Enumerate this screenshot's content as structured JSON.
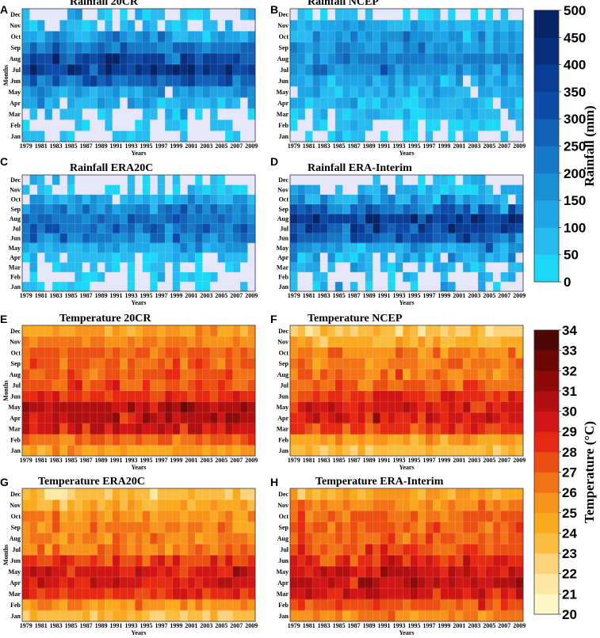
{
  "chart_data": {
    "type": "heatmap",
    "years": [
      1979,
      1980,
      1981,
      1982,
      1983,
      1984,
      1985,
      1986,
      1987,
      1988,
      1989,
      1990,
      1991,
      1992,
      1993,
      1994,
      1995,
      1996,
      1997,
      1998,
      1999,
      2000,
      2001,
      2002,
      2003,
      2004,
      2005,
      2006,
      2007,
      2008,
      2009
    ],
    "months": [
      "Jan",
      "Feb",
      "Mar",
      "Apr",
      "May",
      "Jun",
      "Jul",
      "Aug",
      "Sep",
      "Oct",
      "Nov",
      "Dec"
    ],
    "x_tick_labels": [
      "1979",
      "1981",
      "1983",
      "1985",
      "1987",
      "1989",
      "1991",
      "1993",
      "1995",
      "1997",
      "1999",
      "2001",
      "2003",
      "2005",
      "2007",
      "2009"
    ],
    "xlabel": "Years",
    "ylabel": "Months",
    "colorbars": [
      {
        "id": "rainfall",
        "label": "Rainfall (mm)",
        "ticks": [
          "0",
          "50",
          "100",
          "150",
          "200",
          "250",
          "300",
          "350",
          "400",
          "450",
          "500"
        ],
        "range": [
          0,
          500
        ],
        "low_color": "#e6e6fa",
        "bins": [
          "#1cd8f6",
          "#27bbef",
          "#1ea6e8",
          "#1790d5",
          "#1578c8",
          "#1262b8",
          "#0d4ba8",
          "#0a3d95",
          "#082f7c",
          "#072466"
        ]
      },
      {
        "id": "temperature",
        "label": "Temperature (°C)",
        "ticks": [
          "20",
          "21",
          "22",
          "23",
          "24",
          "25",
          "26",
          "27",
          "28",
          "29",
          "30",
          "31",
          "32",
          "33",
          "34"
        ],
        "range": [
          20,
          34
        ],
        "bins": [
          "#fff8c6",
          "#fde9a3",
          "#fcd37b",
          "#fbbd40",
          "#f9aa1f",
          "#f7931b",
          "#f27316",
          "#ec4f12",
          "#e62912",
          "#d01515",
          "#b10f10",
          "#8e0b0c",
          "#6d0807",
          "#4f0705"
        ]
      }
    ],
    "panels": [
      {
        "letter": "A",
        "title": "Rainfall 20CR",
        "variable": "rainfall",
        "seed": 11,
        "monthly_mean": [
          8,
          10,
          22,
          95,
          130,
          280,
          390,
          340,
          230,
          150,
          60,
          18
        ],
        "noise": 55,
        "show_ylabel": true
      },
      {
        "letter": "B",
        "title": "Rainfall NCEP",
        "variable": "rainfall",
        "seed": 23,
        "monthly_mean": [
          15,
          30,
          70,
          85,
          95,
          115,
          190,
          200,
          160,
          150,
          100,
          20
        ],
        "noise": 35,
        "show_ylabel": false
      },
      {
        "letter": "C",
        "title": "Rainfall ERA20C",
        "variable": "rainfall",
        "seed": 37,
        "monthly_mean": [
          8,
          10,
          22,
          70,
          120,
          210,
          250,
          245,
          180,
          105,
          20,
          10
        ],
        "noise": 45,
        "show_ylabel": false
      },
      {
        "letter": "D",
        "title": "Rainfall ERA-Interim",
        "variable": "rainfall",
        "seed": 41,
        "monthly_mean": [
          15,
          25,
          55,
          100,
          140,
          280,
          370,
          380,
          250,
          140,
          65,
          15
        ],
        "noise": 60,
        "show_ylabel": false
      },
      {
        "letter": "E",
        "title": "Temperature 20CR",
        "variable": "temperature",
        "seed": 53,
        "monthly_mean": [
          25.0,
          26.8,
          29.6,
          30.3,
          30.4,
          28.6,
          27.3,
          27.0,
          27.1,
          27.1,
          26.0,
          25.0
        ],
        "noise": 0.7,
        "show_ylabel": true
      },
      {
        "letter": "F",
        "title": "Temperature NCEP",
        "variable": "temperature",
        "seed": 67,
        "monthly_mean": [
          23.5,
          25.0,
          27.8,
          29.0,
          29.1,
          28.0,
          26.6,
          26.2,
          26.2,
          25.8,
          24.3,
          23.0
        ],
        "noise": 0.7,
        "show_ylabel": false
      },
      {
        "letter": "G",
        "title": "Temperature ERA20C",
        "variable": "temperature",
        "seed": 79,
        "monthly_mean": [
          23.3,
          25.5,
          28.5,
          29.4,
          29.5,
          28.0,
          26.5,
          26.0,
          26.1,
          25.8,
          24.5,
          23.3
        ],
        "noise": 0.7,
        "show_ylabel": true
      },
      {
        "letter": "H",
        "title": "Temperature ERA-Interim",
        "variable": "temperature",
        "seed": 83,
        "monthly_mean": [
          25.8,
          27.5,
          29.5,
          30.2,
          29.9,
          28.5,
          27.5,
          27.0,
          27.0,
          26.8,
          25.8,
          24.5
        ],
        "noise": 0.7,
        "show_ylabel": false
      }
    ]
  }
}
